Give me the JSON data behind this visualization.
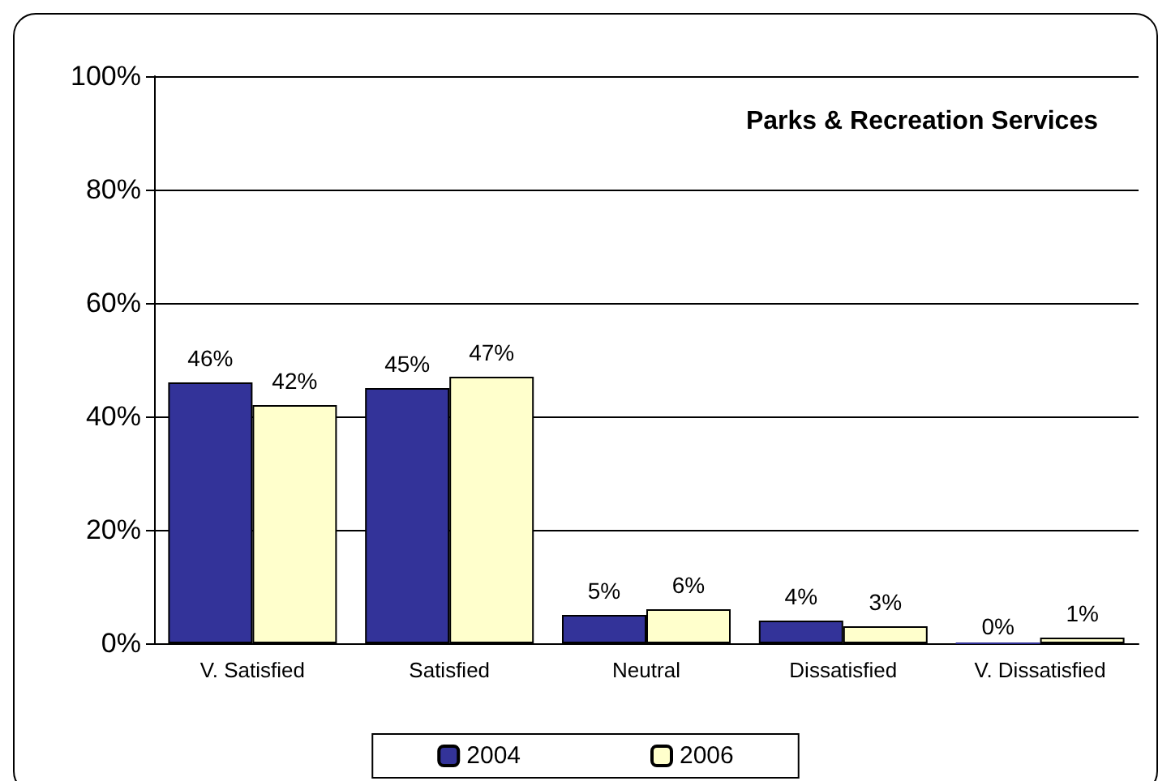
{
  "chart_data": {
    "type": "bar",
    "title": "Parks & Recreation Services",
    "categories": [
      "V. Satisfied",
      "Satisfied",
      "Neutral",
      "Dissatisfied",
      "V. Dissatisfied"
    ],
    "series": [
      {
        "name": "2004",
        "color": "#333399",
        "values": [
          46,
          45,
          5,
          4,
          0
        ],
        "value_labels": [
          "46%",
          "45%",
          "5%",
          "4%",
          "0%"
        ]
      },
      {
        "name": "2006",
        "color": "#ffffcc",
        "values": [
          42,
          47,
          6,
          3,
          1
        ],
        "value_labels": [
          "42%",
          "47%",
          "6%",
          "3%",
          "1%"
        ]
      }
    ],
    "ylim": [
      0,
      100
    ],
    "yticks": [
      {
        "value": 0,
        "label": "0%"
      },
      {
        "value": 20,
        "label": "20%"
      },
      {
        "value": 40,
        "label": "40%"
      },
      {
        "value": 60,
        "label": "60%"
      },
      {
        "value": 80,
        "label": "80%"
      },
      {
        "value": 100,
        "label": "100%"
      }
    ],
    "grid": "y",
    "legend": "bottom"
  }
}
